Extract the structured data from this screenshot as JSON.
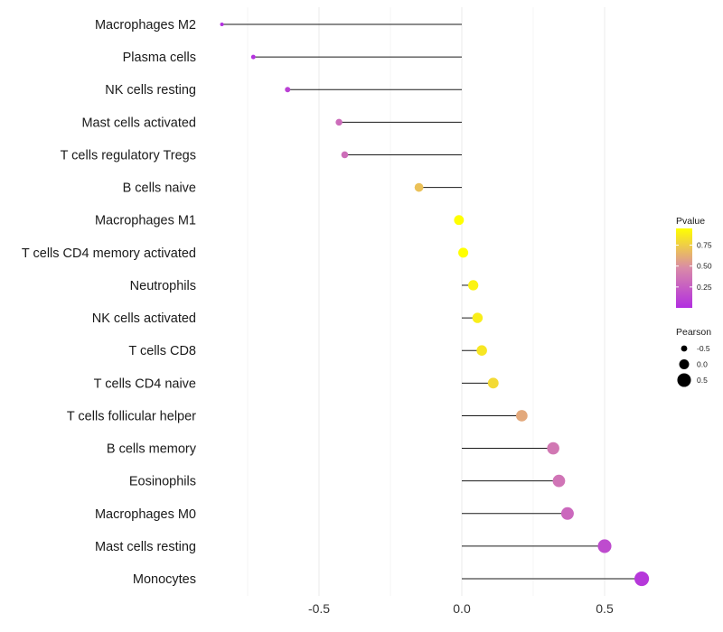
{
  "chart_data": {
    "type": "lollipop",
    "title": "",
    "xlabel": "",
    "ylabel": "",
    "xlim": [
      -0.93,
      0.72
    ],
    "xticks": [
      -0.5,
      0.0,
      0.5
    ],
    "xtick_labels": [
      "-0.5",
      "0.0",
      "0.5"
    ],
    "grid": true,
    "categories": [
      "Macrophages M2",
      "Plasma cells",
      "NK cells resting",
      "Mast cells activated",
      "T cells regulatory  Tregs",
      "B cells naive",
      "Macrophages M1",
      "T cells CD4 memory activated",
      "Neutrophils",
      "NK cells activated",
      "T cells CD8",
      "T cells CD4 naive",
      "T cells follicular helper",
      "B cells memory",
      "Eosinophils",
      "Macrophages M0",
      "Mast cells resting",
      "Monocytes"
    ],
    "pearson": [
      -0.84,
      -0.73,
      -0.61,
      -0.43,
      -0.41,
      -0.15,
      -0.01,
      0.005,
      0.04,
      0.055,
      0.07,
      0.11,
      0.21,
      0.32,
      0.34,
      0.37,
      0.5,
      0.63
    ],
    "pvalue": [
      0.01,
      0.02,
      0.1,
      0.32,
      0.33,
      0.7,
      0.99,
      0.99,
      0.9,
      0.88,
      0.85,
      0.8,
      0.6,
      0.38,
      0.36,
      0.3,
      0.15,
      0.05
    ],
    "legend": {
      "color_title": "Pvalue",
      "color_ticks": [
        0.25,
        0.5,
        0.75
      ],
      "color_tick_labels": [
        "0.25",
        "0.50",
        "0.75"
      ],
      "color_range": [
        0.0,
        0.95
      ],
      "color_low": "#b22ee0",
      "color_mid": "#d98aa8",
      "color_high": "#ffff00",
      "size_title": "Pearson",
      "size_values": [
        -0.5,
        0.0,
        0.5
      ],
      "size_labels": [
        "-0.5",
        "0.0",
        "0.5"
      ],
      "placement": "right"
    }
  }
}
